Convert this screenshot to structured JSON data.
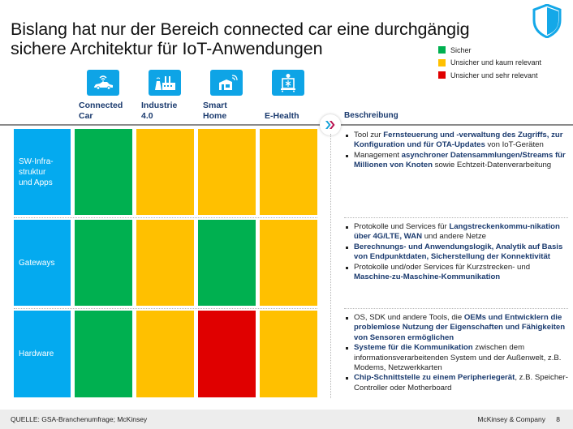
{
  "title": {
    "line1": "Bislang hat nur der Bereich connected car eine durchgängig",
    "line2": "sichere Architektur für IoT-Anwendungen"
  },
  "logo_icon": "shield-icon",
  "legend": [
    {
      "label": "Sicher",
      "color": "#00b050"
    },
    {
      "label": "Unsicher und kaum relevant",
      "color": "#ffc000"
    },
    {
      "label": "Unsicher und sehr relevant",
      "color": "#e00000"
    }
  ],
  "columns": [
    {
      "line1": "Connected",
      "line2": "Car",
      "icon": "connected-car-icon"
    },
    {
      "line1": "Industrie",
      "line2": "4.0",
      "icon": "factory-icon"
    },
    {
      "line1": "Smart",
      "line2": "Home",
      "icon": "smart-home-icon"
    },
    {
      "line1": "",
      "line2": "E-Health",
      "icon": "e-health-icon"
    }
  ],
  "colors": {
    "green": "#00b050",
    "yellow": "#ffc000",
    "red": "#e00000",
    "row_label_bg": "#04aaef",
    "text_blue": "#1a3a6e"
  },
  "rows": [
    {
      "label_lines": [
        "SW-Infra-",
        "struktur",
        "und Apps"
      ],
      "cells": [
        "green",
        "yellow",
        "yellow",
        "yellow"
      ]
    },
    {
      "label_lines": [
        "Gateways"
      ],
      "cells": [
        "green",
        "yellow",
        "green",
        "yellow"
      ]
    },
    {
      "label_lines": [
        "Hardware"
      ],
      "cells": [
        "green",
        "yellow",
        "red",
        "yellow"
      ]
    }
  ],
  "description": {
    "header": "Beschreibung",
    "blocks": [
      {
        "bullets": [
          [
            {
              "t": "Tool zur ",
              "b": false
            },
            {
              "t": "Fernsteuerung und -verwaltung des Zugriffs, zur Konfiguration und für OTA-Updates",
              "b": true
            },
            {
              "t": " von IoT-Geräten",
              "b": false
            }
          ],
          [
            {
              "t": "Management ",
              "b": false
            },
            {
              "t": "asynchroner Datensammlungen/Streams für Millionen von Knoten",
              "b": true
            },
            {
              "t": " sowie Echtzeit-Datenverarbeitung",
              "b": false
            }
          ]
        ]
      },
      {
        "bullets": [
          [
            {
              "t": "Protokolle und Services für ",
              "b": false
            },
            {
              "t": "Langstreckenkommu-nikation über 4G/LTE, WAN",
              "b": true
            },
            {
              "t": " und andere Netze",
              "b": false
            }
          ],
          [
            {
              "t": "Berechnungs- und Anwendungslogik, Analytik auf Basis von Endpunktdaten, Sicherstellung der Konnektivität",
              "b": true
            }
          ],
          [
            {
              "t": "Protokolle und/oder Services für Kurzstrecken- und ",
              "b": false
            },
            {
              "t": "Maschine-zu-Maschine-Kommunikation",
              "b": true
            }
          ]
        ]
      },
      {
        "bullets": [
          [
            {
              "t": "OS, SDK und andere Tools, die ",
              "b": false
            },
            {
              "t": "OEMs und Entwicklern die problemlose Nutzung der Eigenschaften und Fähigkeiten von Sensoren ermöglichen",
              "b": true
            }
          ],
          [
            {
              "t": "Systeme für die Kommunikation",
              "b": true
            },
            {
              "t": " zwischen dem informationsverarbeitenden System und der Außenwelt, z.B. Modems, Netzwerkkarten",
              "b": false
            }
          ],
          [
            {
              "t": "Chip-Schnittstelle zu einem Peripheriegerät",
              "b": true
            },
            {
              "t": ", z.B. Speicher-Controller oder Motherboard",
              "b": false
            }
          ]
        ]
      }
    ]
  },
  "footer": {
    "source": "QUELLE: GSA-Branchenumfrage; McKinsey",
    "brand": "McKinsey & Company",
    "page": "8"
  }
}
